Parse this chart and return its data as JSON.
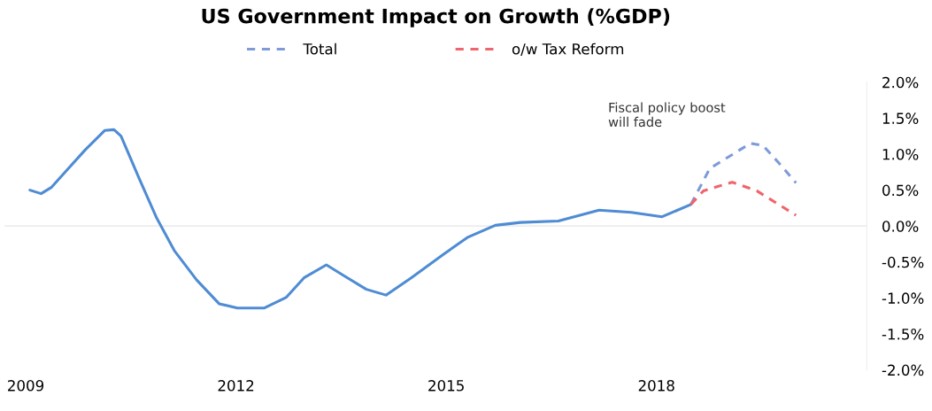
{
  "chart_data": {
    "type": "line",
    "title": "US Government Impact on Growth (%GDP)",
    "xlim": [
      2008.7,
      2021.0
    ],
    "xticks": [
      2009,
      2012,
      2015,
      2018
    ],
    "ylim": [
      -2.0,
      2.0
    ],
    "yticks": [
      {
        "value": 2.0,
        "label": "2.0%"
      },
      {
        "value": 1.5,
        "label": "1.5%"
      },
      {
        "value": 1.0,
        "label": "1.0%"
      },
      {
        "value": 0.5,
        "label": "0.5%"
      },
      {
        "value": 0.0,
        "label": "0.0%"
      },
      {
        "value": -0.5,
        "label": "-0.5%"
      },
      {
        "value": -1.0,
        "label": "-1.0%"
      },
      {
        "value": -1.5,
        "label": "-1.5%"
      },
      {
        "value": -2.0,
        "label": "-2.0%"
      }
    ],
    "grid": false,
    "legend": "top",
    "marker": "none",
    "ref_lines": [
      {
        "axis": "y",
        "value": 0.0,
        "color": "#ececec"
      }
    ],
    "annotations": [
      "Fiscal policy boost\nwill fade"
    ],
    "series": [
      {
        "color": "#4f8cd3",
        "line_style": "solid",
        "x": [
          2009.06,
          2009.22,
          2009.37,
          2009.6,
          2009.85,
          2010.13,
          2010.26,
          2010.36,
          2010.62,
          2010.87,
          2011.12,
          2011.44,
          2011.76,
          2012.02,
          2012.4,
          2012.72,
          2012.97,
          2013.29,
          2013.54,
          2013.86,
          2014.14,
          2014.5,
          2014.95,
          2015.3,
          2015.7,
          2016.06,
          2016.6,
          2017.18,
          2017.64,
          2018.08,
          2018.49
        ],
        "values": [
          0.5,
          0.45,
          0.54,
          0.79,
          1.06,
          1.33,
          1.34,
          1.25,
          0.66,
          0.11,
          -0.34,
          -0.75,
          -1.08,
          -1.14,
          -1.14,
          -0.99,
          -0.72,
          -0.54,
          -0.69,
          -0.88,
          -0.96,
          -0.72,
          -0.4,
          -0.16,
          0.01,
          0.05,
          0.07,
          0.22,
          0.19,
          0.13,
          0.3
        ]
      },
      {
        "name": "Total",
        "color": "#7d9bd8",
        "line_style": "dashed",
        "x": [
          2018.49,
          2018.76,
          2019.34,
          2019.52,
          2019.79,
          2019.99
        ],
        "values": [
          0.3,
          0.8,
          1.15,
          1.12,
          0.83,
          0.6
        ]
      },
      {
        "name": "o/w Tax Reform",
        "color": "#f0646c",
        "line_style": "dashed",
        "x": [
          2018.49,
          2018.67,
          2019.08,
          2019.43,
          2019.99
        ],
        "values": [
          0.3,
          0.49,
          0.61,
          0.49,
          0.15
        ]
      }
    ]
  }
}
